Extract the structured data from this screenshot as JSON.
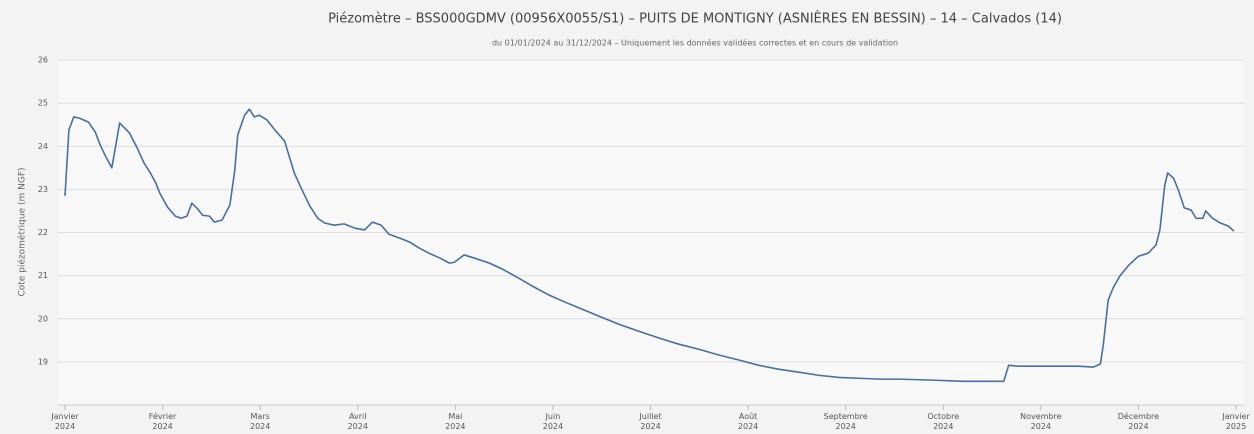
{
  "chart_data": {
    "type": "line",
    "title": "Piézomètre – BSS000GDMV (00956X0055/S1) – PUITS DE MONTIGNY (ASNIÈRES EN BESSIN) – 14 – Calvados (14)",
    "subtitle": "du 01/01/2024 au 31/12/2024 – Uniquement les données validées correctes et en cours de validation",
    "y_label": "Cote piézométrique (m NGF)",
    "grid": true,
    "xlim": [
      0,
      12
    ],
    "xticks": [
      {
        "value": 0,
        "label": "Janvier 2024"
      },
      {
        "value": 1,
        "label": "Février 2024"
      },
      {
        "value": 2,
        "label": "Mars 2024"
      },
      {
        "value": 3,
        "label": "Avril 2024"
      },
      {
        "value": 4,
        "label": "Mai 2024"
      },
      {
        "value": 5,
        "label": "Juin 2024"
      },
      {
        "value": 6,
        "label": "Juillet 2024"
      },
      {
        "value": 7,
        "label": "Août 2024"
      },
      {
        "value": 8,
        "label": "Septembre 2024"
      },
      {
        "value": 9,
        "label": "Octobre 2024"
      },
      {
        "value": 10,
        "label": "Novembre 2024"
      },
      {
        "value": 11,
        "label": "Décembre 2024"
      },
      {
        "value": 12,
        "label": "Janvier 2025"
      }
    ],
    "ylim": [
      18,
      26
    ],
    "yticks": [
      19,
      20,
      21,
      22,
      23,
      24,
      25,
      26
    ],
    "series": [
      {
        "color": "#4a6f9c",
        "x": [
          0,
          0.04,
          0.09,
          0.15,
          0.24,
          0.31,
          0.36,
          0.42,
          0.48,
          0.56,
          0.66,
          0.74,
          0.81,
          0.87,
          0.93,
          0.97,
          1.05,
          1.13,
          1.19,
          1.25,
          1.3,
          1.35,
          1.41,
          1.48,
          1.53,
          1.61,
          1.69,
          1.74,
          1.77,
          1.84,
          1.89,
          1.94,
          1.99,
          2.07,
          2.15,
          2.25,
          2.3,
          2.35,
          2.42,
          2.51,
          2.59,
          2.66,
          2.76,
          2.86,
          2.97,
          3.07,
          3.15,
          3.24,
          3.32,
          3.43,
          3.53,
          3.63,
          3.73,
          3.84,
          3.94,
          3.99,
          4.09,
          4.19,
          4.35,
          4.5,
          4.65,
          4.81,
          4.96,
          5.12,
          5.27,
          5.47,
          5.68,
          5.88,
          6.09,
          6.29,
          6.5,
          6.7,
          6.91,
          7.11,
          7.31,
          7.52,
          7.72,
          7.93,
          8.13,
          8.34,
          8.54,
          8.85,
          9.21,
          9.36,
          9.51,
          9.62,
          9.67,
          9.77,
          9.97,
          10.18,
          10.38,
          10.54,
          10.61,
          10.64,
          10.69,
          10.74,
          10.81,
          10.9,
          11.0,
          11.1,
          11.18,
          11.22,
          11.27,
          11.3,
          11.36,
          11.41,
          11.47,
          11.54,
          11.59,
          11.66,
          11.69,
          11.76,
          11.84,
          11.92,
          11.98
        ],
        "values": [
          22.85,
          24.38,
          24.68,
          24.65,
          24.56,
          24.33,
          24.03,
          23.75,
          23.5,
          24.54,
          24.31,
          23.96,
          23.61,
          23.4,
          23.15,
          22.92,
          22.59,
          22.38,
          22.33,
          22.38,
          22.68,
          22.57,
          22.4,
          22.38,
          22.24,
          22.29,
          22.64,
          23.45,
          24.26,
          24.72,
          24.86,
          24.68,
          24.72,
          24.61,
          24.38,
          24.12,
          23.75,
          23.38,
          23.03,
          22.61,
          22.33,
          22.22,
          22.17,
          22.2,
          22.1,
          22.06,
          22.24,
          22.17,
          21.96,
          21.87,
          21.78,
          21.64,
          21.52,
          21.41,
          21.29,
          21.31,
          21.48,
          21.41,
          21.29,
          21.13,
          20.94,
          20.73,
          20.55,
          20.39,
          20.25,
          20.06,
          19.87,
          19.71,
          19.55,
          19.41,
          19.29,
          19.16,
          19.04,
          18.92,
          18.83,
          18.76,
          18.69,
          18.64,
          18.62,
          18.6,
          18.6,
          18.58,
          18.55,
          18.55,
          18.55,
          18.55,
          18.92,
          18.9,
          18.9,
          18.9,
          18.9,
          18.88,
          18.95,
          19.39,
          20.43,
          20.71,
          20.99,
          21.24,
          21.45,
          21.52,
          21.71,
          22.06,
          23.1,
          23.38,
          23.26,
          22.98,
          22.57,
          22.52,
          22.33,
          22.33,
          22.5,
          22.33,
          22.22,
          22.15,
          22.03
        ]
      }
    ]
  }
}
